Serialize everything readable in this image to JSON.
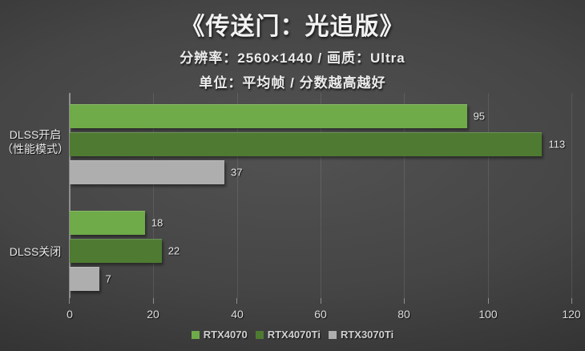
{
  "header": {
    "title": "《传送门：光追版》",
    "subtitle1": "分辨率：2560×1440 / 画质：Ultra",
    "subtitle2": "单位：平均帧 / 分数越高越好"
  },
  "chart_data": {
    "type": "bar",
    "orientation": "horizontal",
    "title": "《传送门：光追版》",
    "categories": [
      "DLSS开启（性能模式）",
      "DLSS关闭"
    ],
    "series": [
      {
        "name": "RTX4070",
        "color": "#6fab49",
        "values": [
          95,
          18
        ]
      },
      {
        "name": "RTX4070Ti",
        "color": "#4e7b31",
        "values": [
          113,
          22
        ]
      },
      {
        "name": "RTX3070Ti",
        "color": "#aeaeae",
        "values": [
          37,
          7
        ]
      }
    ],
    "xlim": [
      0,
      120
    ],
    "xticks": [
      0,
      20,
      40,
      60,
      80,
      100,
      120
    ],
    "grid": "vertical-major",
    "legend_position": "bottom"
  },
  "category_labels": {
    "group1_line1": "DLSS开启",
    "group1_line2": "（性能模式）",
    "group2": "DLSS关闭"
  },
  "colors": {
    "rtx4070": "#6fab49",
    "rtx4070ti": "#4e7b31",
    "rtx3070ti": "#aeaeae",
    "axis": "#8f8f8f"
  }
}
